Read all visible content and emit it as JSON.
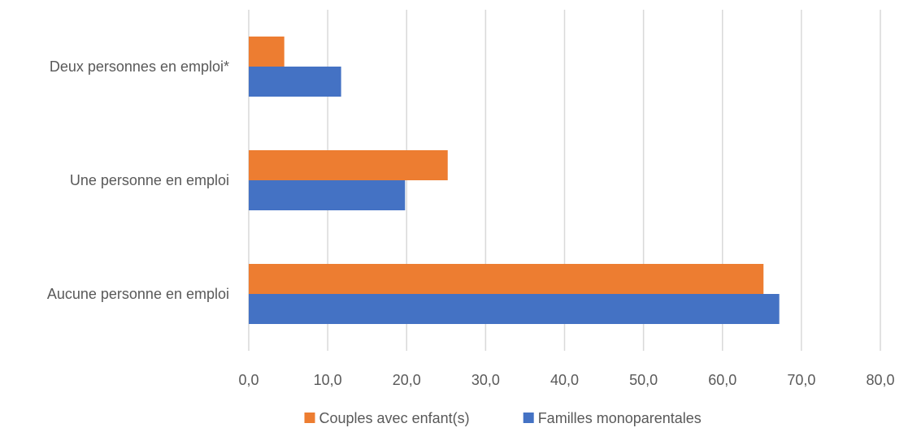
{
  "chart_data": {
    "type": "bar",
    "orientation": "horizontal",
    "title": "",
    "xlabel": "",
    "ylabel": "",
    "categories": [
      "Deux personnes en emploi*",
      "Une personne en emploi",
      "Aucune personne en emploi"
    ],
    "series": [
      {
        "name": "Couples avec enfant(s)",
        "color": "#ed7d31",
        "values": [
          4.5,
          25.2,
          65.2
        ]
      },
      {
        "name": "Familles monoparentales",
        "color": "#4472c4",
        "values": [
          11.7,
          19.8,
          67.2
        ]
      }
    ],
    "xlim": [
      0,
      80
    ],
    "x_ticks": [
      0,
      10,
      20,
      30,
      40,
      50,
      60,
      70,
      80
    ],
    "x_tick_labels": [
      "0,0",
      "10,0",
      "20,0",
      "30,0",
      "40,0",
      "50,0",
      "60,0",
      "70,0",
      "80,0"
    ],
    "grid": true,
    "legend_position": "bottom"
  }
}
